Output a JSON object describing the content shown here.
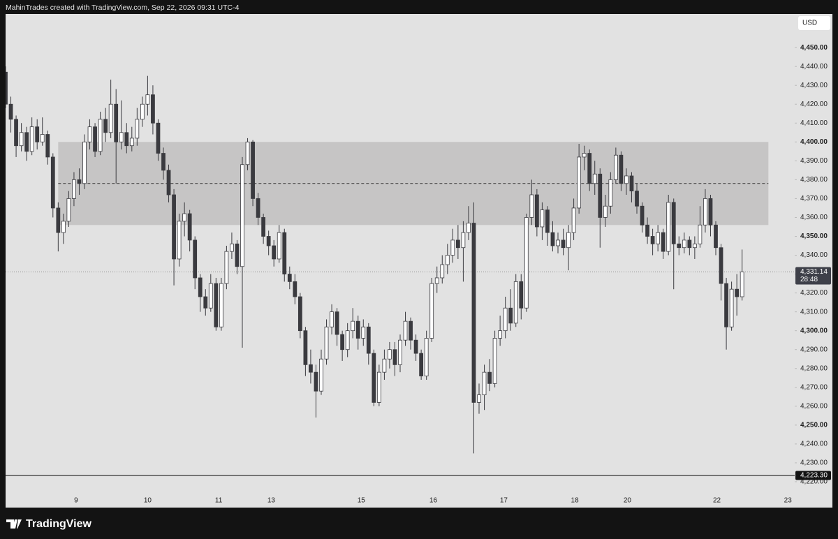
{
  "header": "MahinTrades created with TradingView.com, Sep 22, 2026 09:31 UTC-4",
  "footer": "TradingView",
  "chart_data": {
    "type": "candlestick",
    "currency": "USD",
    "xlim": [
      0,
      150
    ],
    "ylim": [
      4206.3,
      4467.8
    ],
    "xticks": [
      {
        "value": 13.4,
        "label": "9"
      },
      {
        "value": 27,
        "label": "10"
      },
      {
        "value": 40.5,
        "label": "11"
      },
      {
        "value": 50.5,
        "label": "13"
      },
      {
        "value": 67.6,
        "label": "15"
      },
      {
        "value": 81.3,
        "label": "16"
      },
      {
        "value": 94.7,
        "label": "17"
      },
      {
        "value": 108.2,
        "label": "18"
      },
      {
        "value": 118.2,
        "label": "20"
      },
      {
        "value": 135.2,
        "label": "22"
      },
      {
        "value": 148.7,
        "label": "23"
      }
    ],
    "yticks": [
      {
        "value": 4220,
        "label": "4,220.00"
      },
      {
        "value": 4230,
        "label": "4,230.00"
      },
      {
        "value": 4240,
        "label": "4,240.00"
      },
      {
        "value": 4250,
        "label": "4,250.00"
      },
      {
        "value": 4260,
        "label": "4,260.00"
      },
      {
        "value": 4270,
        "label": "4,270.00"
      },
      {
        "value": 4280,
        "label": "4,280.00"
      },
      {
        "value": 4290,
        "label": "4,290.00"
      },
      {
        "value": 4300,
        "label": "4,300.00"
      },
      {
        "value": 4310,
        "label": "4,310.00"
      },
      {
        "value": 4320,
        "label": "4,320.00"
      },
      {
        "value": 4330,
        "label": "4,330.00"
      },
      {
        "value": 4340,
        "label": "4,340.00"
      },
      {
        "value": 4350,
        "label": "4,350.00"
      },
      {
        "value": 4360,
        "label": "4,360.00"
      },
      {
        "value": 4370,
        "label": "4,370.00"
      },
      {
        "value": 4380,
        "label": "4,380.00"
      },
      {
        "value": 4390,
        "label": "4,390.00"
      },
      {
        "value": 4400,
        "label": "4,400.00"
      },
      {
        "value": 4410,
        "label": "4,410.00"
      },
      {
        "value": 4420,
        "label": "4,420.00"
      },
      {
        "value": 4430,
        "label": "4,430.00"
      },
      {
        "value": 4440,
        "label": "4,440.00"
      },
      {
        "value": 4450,
        "label": "4,450.00"
      }
    ],
    "up_color": "#ffffff",
    "down_color": "#3a3a3f",
    "zone": {
      "top": 4400,
      "bottom": 4356,
      "mid": 4378,
      "start": 10,
      "end": 145,
      "color": "#c6c5c5"
    },
    "last_price": {
      "value": 4331.14,
      "label": "4,331.14",
      "countdown": "28:48"
    },
    "level": {
      "value": 4223.3,
      "label": "4,223.30"
    },
    "x": [
      0,
      1,
      2,
      3,
      4,
      5,
      6,
      7,
      8,
      9,
      10,
      11,
      12,
      13,
      14,
      15,
      16,
      17,
      18,
      19,
      20,
      21,
      22,
      23,
      24,
      25,
      26,
      27,
      28,
      29,
      30,
      31,
      32,
      33,
      34,
      35,
      36,
      37,
      38,
      39,
      40,
      41,
      42,
      43,
      44,
      45,
      46,
      47,
      48,
      49,
      50,
      51,
      52,
      53,
      54,
      55,
      56,
      57,
      58,
      59,
      60,
      61,
      62,
      63,
      64,
      65,
      66,
      67,
      68,
      69,
      70,
      71,
      72,
      73,
      74,
      75,
      76,
      77,
      78,
      79,
      80,
      81,
      82,
      83,
      84,
      85,
      86,
      87,
      88,
      89,
      90,
      91,
      92,
      93,
      94,
      95,
      96,
      97,
      98,
      99,
      100,
      101,
      102,
      103,
      104,
      105,
      106,
      107,
      108,
      109,
      110,
      111,
      112,
      113,
      114,
      115,
      116,
      117,
      118,
      119,
      120,
      121,
      122,
      123,
      124,
      125,
      126,
      127,
      128,
      129,
      130,
      131,
      132,
      133,
      134,
      135,
      136,
      137,
      138,
      139,
      140
    ],
    "open": [
      4437,
      4420,
      4412,
      4398,
      4405,
      4395,
      4408,
      4400,
      4404,
      4392,
      4365,
      4352,
      4358,
      4370,
      4380,
      4378,
      4400,
      4408,
      4395,
      4412,
      4405,
      4420,
      4400,
      4405,
      4398,
      4402,
      4412,
      4420,
      4425,
      4410,
      4394,
      4385,
      4372,
      4338,
      4358,
      4362,
      4348,
      4328,
      4318,
      4312,
      4325,
      4302,
      4325,
      4342,
      4346,
      4334,
      4388,
      4400,
      4370,
      4360,
      4350,
      4345,
      4338,
      4352,
      4330,
      4326,
      4318,
      4300,
      4282,
      4278,
      4268,
      4285,
      4302,
      4310,
      4298,
      4290,
      4300,
      4305,
      4296,
      4302,
      4288,
      4262,
      4278,
      4285,
      4290,
      4282,
      4295,
      4305,
      4295,
      4288,
      4276,
      4296,
      4325,
      4328,
      4335,
      4340,
      4348,
      4344,
      4352,
      4357,
      4262,
      4266,
      4278,
      4272,
      4296,
      4300,
      4312,
      4304,
      4326,
      4312,
      4360,
      4372,
      4355,
      4364,
      4352,
      4345,
      4348,
      4344,
      4352,
      4365,
      4392,
      4394,
      4378,
      4383,
      4360,
      4366,
      4380,
      4393,
      4378,
      4382,
      4374,
      4366,
      4356,
      4350,
      4346,
      4352,
      4342,
      4368,
      4346,
      4344,
      4348,
      4344,
      4346,
      4356,
      4370,
      4356,
      4344,
      4325,
      4302,
      4322,
      4318
    ],
    "high": [
      4440,
      4424,
      4414,
      4410,
      4408,
      4413,
      4412,
      4413,
      4406,
      4394,
      4368,
      4362,
      4374,
      4384,
      4386,
      4404,
      4412,
      4410,
      4416,
      4418,
      4433,
      4428,
      4422,
      4410,
      4408,
      4418,
      4424,
      4435,
      4430,
      4412,
      4397,
      4388,
      4375,
      4362,
      4368,
      4364,
      4350,
      4330,
      4322,
      4330,
      4328,
      4328,
      4345,
      4352,
      4348,
      4392,
      4402,
      4401,
      4373,
      4362,
      4353,
      4348,
      4356,
      4354,
      4334,
      4330,
      4320,
      4302,
      4290,
      4282,
      4290,
      4306,
      4314,
      4312,
      4300,
      4304,
      4312,
      4308,
      4306,
      4304,
      4290,
      4282,
      4290,
      4294,
      4294,
      4298,
      4310,
      4307,
      4298,
      4290,
      4300,
      4328,
      4334,
      4340,
      4346,
      4354,
      4356,
      4358,
      4366,
      4368,
      4272,
      4282,
      4285,
      4300,
      4308,
      4318,
      4322,
      4330,
      4330,
      4362,
      4380,
      4375,
      4368,
      4366,
      4358,
      4352,
      4354,
      4356,
      4370,
      4399,
      4398,
      4396,
      4390,
      4386,
      4372,
      4384,
      4397,
      4395,
      4386,
      4384,
      4378,
      4368,
      4360,
      4354,
      4356,
      4354,
      4372,
      4370,
      4350,
      4352,
      4350,
      4350,
      4366,
      4375,
      4372,
      4358,
      4346,
      4328,
      4326,
      4330,
      4343
    ],
    "low": [
      4418,
      4405,
      4392,
      4395,
      4390,
      4393,
      4396,
      4398,
      4388,
      4360,
      4342,
      4346,
      4355,
      4366,
      4372,
      4375,
      4396,
      4392,
      4393,
      4400,
      4402,
      4378,
      4396,
      4394,
      4395,
      4398,
      4408,
      4414,
      4404,
      4390,
      4380,
      4368,
      4324,
      4334,
      4350,
      4342,
      4322,
      4310,
      4308,
      4310,
      4300,
      4300,
      4322,
      4338,
      4330,
      4291,
      4385,
      4366,
      4356,
      4346,
      4340,
      4334,
      4336,
      4326,
      4322,
      4314,
      4296,
      4276,
      4272,
      4254,
      4266,
      4282,
      4298,
      4292,
      4284,
      4286,
      4296,
      4290,
      4292,
      4282,
      4260,
      4260,
      4274,
      4280,
      4276,
      4278,
      4292,
      4290,
      4284,
      4274,
      4274,
      4294,
      4320,
      4325,
      4330,
      4336,
      4338,
      4326,
      4348,
      4235,
      4256,
      4258,
      4268,
      4270,
      4292,
      4296,
      4300,
      4302,
      4306,
      4310,
      4356,
      4350,
      4348,
      4345,
      4342,
      4341,
      4340,
      4332,
      4348,
      4362,
      4385,
      4374,
      4372,
      4344,
      4355,
      4362,
      4378,
      4374,
      4372,
      4368,
      4362,
      4352,
      4346,
      4340,
      4342,
      4338,
      4340,
      4322,
      4340,
      4341,
      4340,
      4338,
      4344,
      4352,
      4350,
      4340,
      4316,
      4290,
      4300,
      4308,
      4316
    ],
    "close": [
      4420,
      4412,
      4398,
      4405,
      4395,
      4408,
      4400,
      4404,
      4392,
      4365,
      4352,
      4358,
      4370,
      4380,
      4378,
      4400,
      4408,
      4395,
      4412,
      4405,
      4420,
      4400,
      4405,
      4398,
      4402,
      4412,
      4420,
      4425,
      4410,
      4394,
      4385,
      4372,
      4338,
      4358,
      4362,
      4348,
      4328,
      4318,
      4312,
      4325,
      4302,
      4325,
      4342,
      4346,
      4334,
      4388,
      4400,
      4370,
      4360,
      4350,
      4345,
      4338,
      4352,
      4330,
      4326,
      4318,
      4300,
      4282,
      4278,
      4268,
      4285,
      4302,
      4310,
      4298,
      4290,
      4300,
      4305,
      4296,
      4302,
      4288,
      4262,
      4278,
      4285,
      4290,
      4282,
      4295,
      4305,
      4295,
      4288,
      4276,
      4296,
      4325,
      4328,
      4335,
      4340,
      4348,
      4344,
      4352,
      4357,
      4262,
      4266,
      4278,
      4272,
      4296,
      4300,
      4312,
      4304,
      4326,
      4312,
      4360,
      4372,
      4355,
      4364,
      4352,
      4345,
      4348,
      4344,
      4352,
      4365,
      4392,
      4394,
      4378,
      4383,
      4360,
      4366,
      4380,
      4393,
      4378,
      4382,
      4374,
      4366,
      4356,
      4350,
      4346,
      4352,
      4342,
      4368,
      4346,
      4344,
      4348,
      4344,
      4346,
      4356,
      4370,
      4356,
      4344,
      4325,
      4302,
      4322,
      4318,
      4331.14
    ]
  }
}
